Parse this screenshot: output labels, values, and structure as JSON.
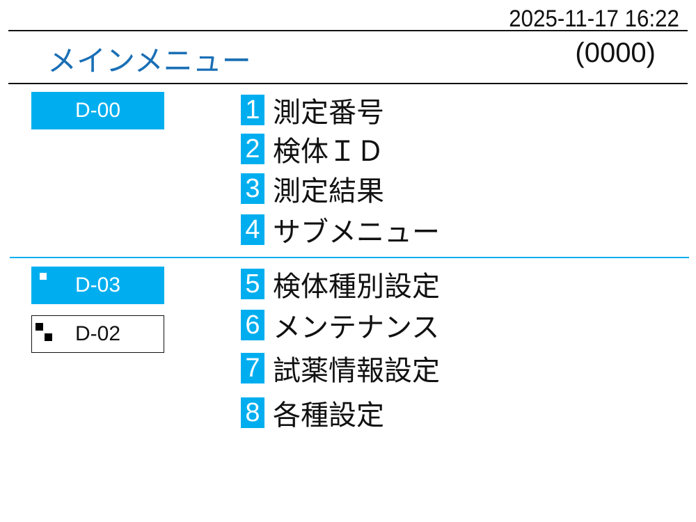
{
  "header": {
    "datetime": "2025-11-17 16:22",
    "title": "メインメニュー",
    "count": "(0000)"
  },
  "colors": {
    "accent": "#00aeef",
    "title": "#1a6fb5"
  },
  "status": [
    {
      "label": "D-00",
      "active": true
    },
    {
      "label": "D-03",
      "active": true,
      "icon": "square-icon"
    },
    {
      "label": "D-02",
      "active": false,
      "icon": "two-squares-icon"
    }
  ],
  "menu": [
    {
      "num": "1",
      "label": "測定番号"
    },
    {
      "num": "2",
      "label": "検体ＩＤ"
    },
    {
      "num": "3",
      "label": "測定結果"
    },
    {
      "num": "4",
      "label": "サブメニュー"
    },
    {
      "num": "5",
      "label": "検体種別設定"
    },
    {
      "num": "6",
      "label": "メンテナンス"
    },
    {
      "num": "7",
      "label": "試薬情報設定"
    },
    {
      "num": "8",
      "label": "各種設定"
    }
  ]
}
